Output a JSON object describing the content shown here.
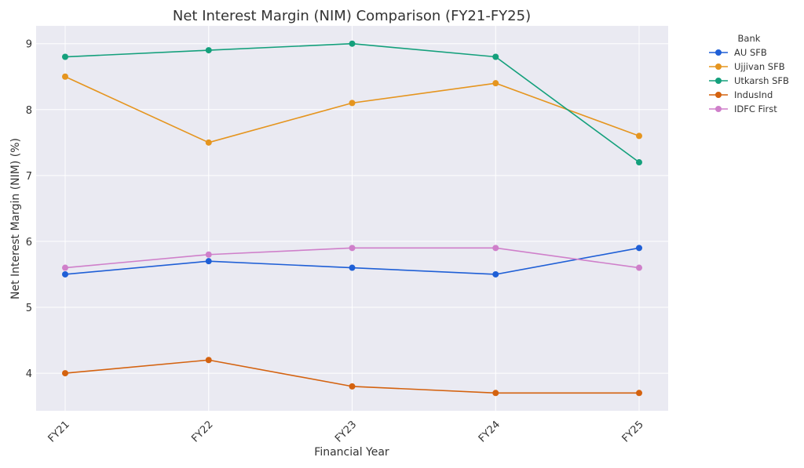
{
  "chart_data": {
    "type": "line",
    "title": "Net Interest Margin (NIM) Comparison (FY21-FY25)",
    "xlabel": "Financial Year",
    "ylabel": "Net Interest Margin (NIM) (%)",
    "categories": [
      "FY21",
      "FY22",
      "FY23",
      "FY24",
      "FY25"
    ],
    "ylim": [
      3.43,
      9.27
    ],
    "yticks": [
      4,
      5,
      6,
      7,
      8,
      9
    ],
    "grid": true,
    "legend": {
      "title": "Bank",
      "placement": "outside-right"
    },
    "series": [
      {
        "name": "AU SFB",
        "color": "#1f5fd6",
        "values": [
          5.5,
          5.7,
          5.6,
          5.5,
          5.9
        ]
      },
      {
        "name": "Ujjivan SFB",
        "color": "#e5951f",
        "values": [
          8.5,
          7.5,
          8.1,
          8.4,
          7.6
        ]
      },
      {
        "name": "Utkarsh SFB",
        "color": "#14a07c",
        "values": [
          8.8,
          8.9,
          9.0,
          8.8,
          7.2
        ]
      },
      {
        "name": "IndusInd",
        "color": "#d4620f",
        "values": [
          4.0,
          4.2,
          3.8,
          3.7,
          3.7
        ]
      },
      {
        "name": "IDFC First",
        "color": "#cf7fca",
        "values": [
          5.6,
          5.8,
          5.9,
          5.9,
          5.6
        ]
      }
    ]
  }
}
